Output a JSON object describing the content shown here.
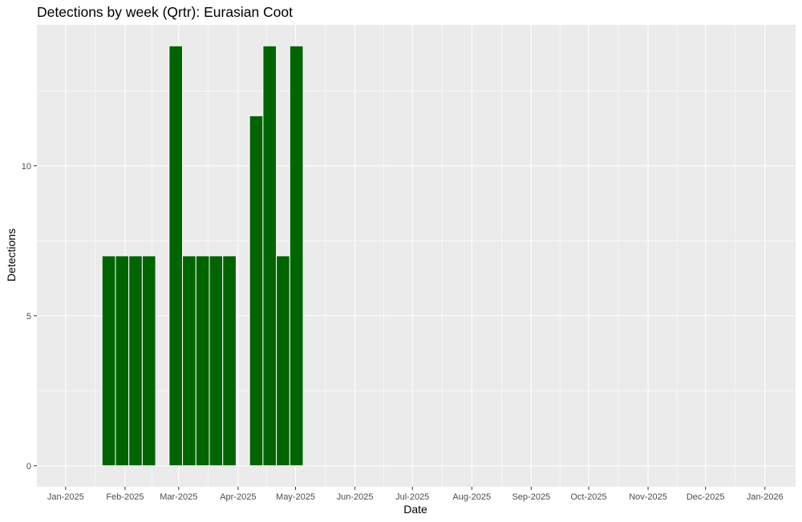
{
  "chart_data": {
    "type": "bar",
    "title": "Detections by week (Qrtr): Eurasian Coot",
    "xlabel": "Date",
    "ylabel": "Detections",
    "x_ticks": [
      "Jan-2025",
      "Feb-2025",
      "Mar-2025",
      "Apr-2025",
      "May-2025",
      "Jun-2025",
      "Jul-2025",
      "Aug-2025",
      "Sep-2025",
      "Oct-2025",
      "Nov-2025",
      "Dec-2025",
      "Jan-2026"
    ],
    "x_tick_dates": [
      "2025-01-01",
      "2025-02-01",
      "2025-03-01",
      "2025-04-01",
      "2025-05-01",
      "2025-06-01",
      "2025-07-01",
      "2025-08-01",
      "2025-09-01",
      "2025-10-01",
      "2025-11-01",
      "2025-12-01",
      "2026-01-01"
    ],
    "x_range": [
      "2024-12-17",
      "2026-01-17"
    ],
    "y_ticks": [
      0,
      5,
      10
    ],
    "ylim": [
      -0.7,
      14.7
    ],
    "grid": true,
    "bar_color": "#006400",
    "background_color": "#ebebeb",
    "weeks": [
      "2025-01-20",
      "2025-01-27",
      "2025-02-03",
      "2025-02-10",
      "2025-02-24",
      "2025-03-03",
      "2025-03-10",
      "2025-03-17",
      "2025-03-24",
      "2025-04-07",
      "2025-04-14",
      "2025-04-21",
      "2025-04-28"
    ],
    "values": [
      7,
      7,
      7,
      7,
      14,
      7,
      7,
      7,
      7,
      11.67,
      14,
      7,
      14
    ]
  }
}
